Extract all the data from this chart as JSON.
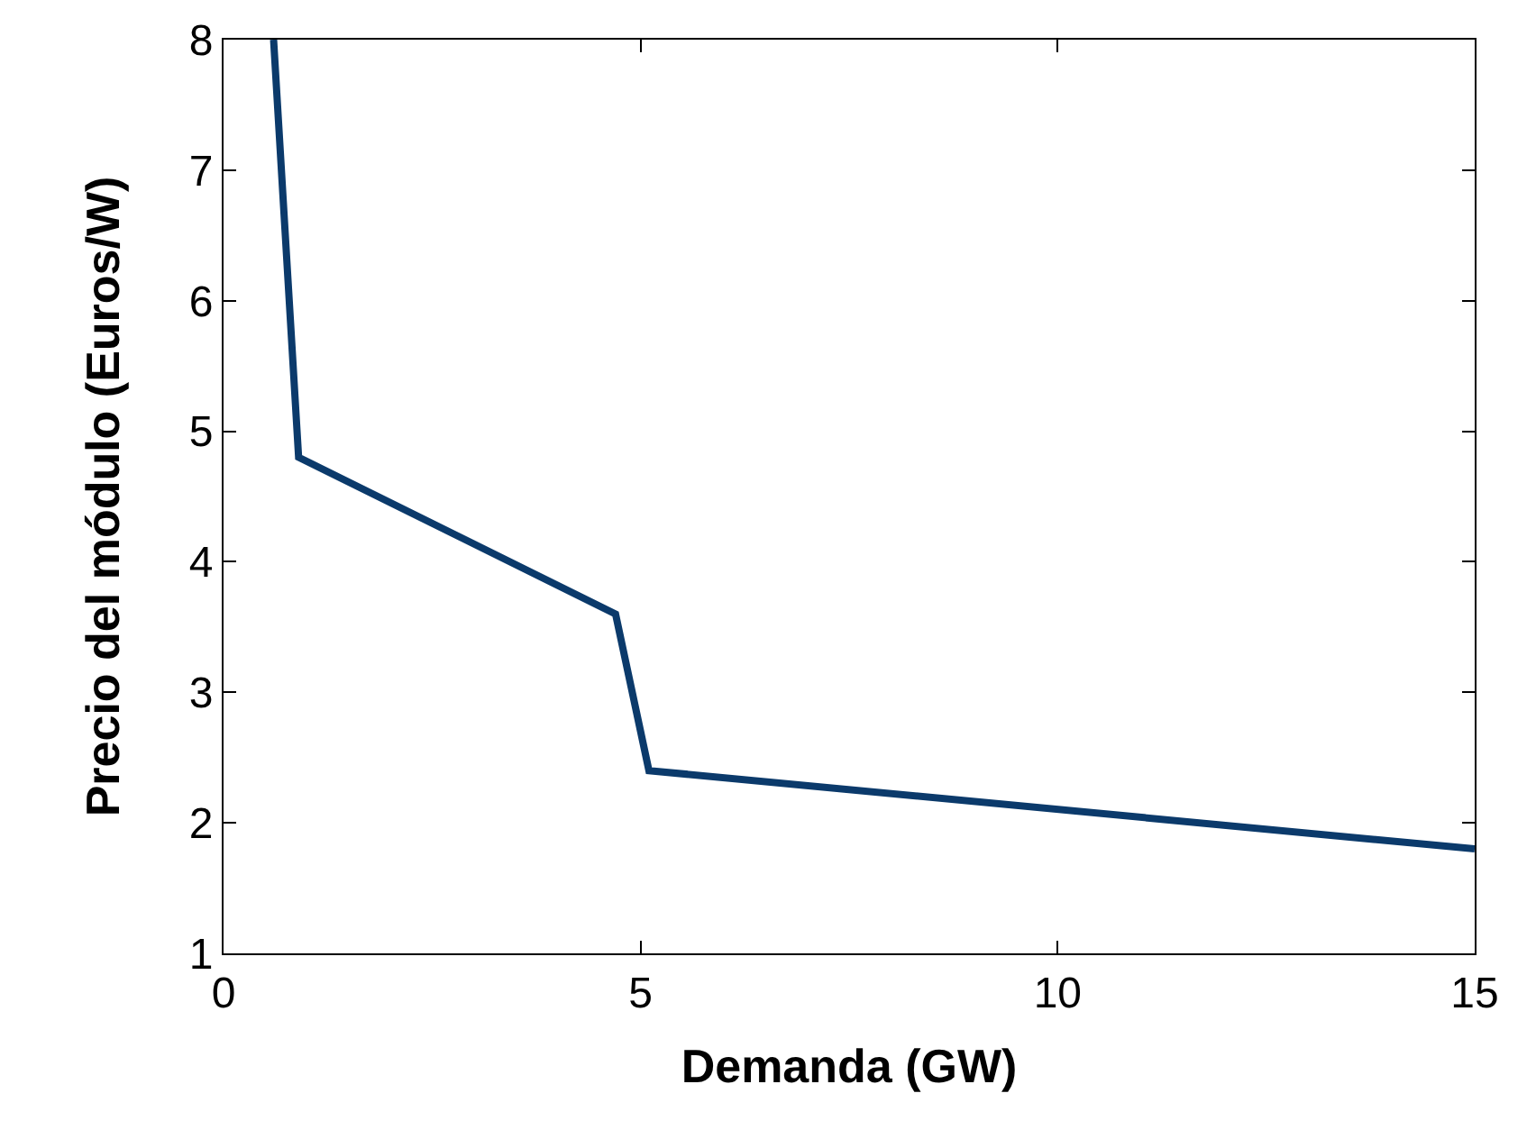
{
  "chart_data": {
    "type": "line",
    "xlabel": "Demanda (GW)",
    "ylabel": "Precio del módulo (Euros/W)",
    "x": [
      0.6,
      0.9,
      4.7,
      5.1,
      15
    ],
    "series": [
      {
        "color": "#0b3a6b",
        "values": [
          8,
          4.8,
          3.6,
          2.4,
          1.8
        ]
      }
    ],
    "xlim": [
      0,
      15
    ],
    "xticks": [
      0,
      5,
      10,
      15
    ],
    "ylim": [
      1,
      8
    ],
    "yticks": [
      1,
      2,
      3,
      4,
      5,
      6,
      7,
      8
    ],
    "grid": false,
    "marker": "none",
    "line_style": "solid"
  }
}
